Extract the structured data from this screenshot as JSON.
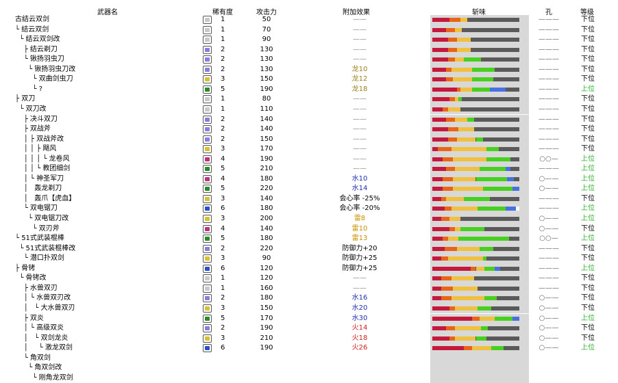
{
  "header": {
    "name": "武器名",
    "rarity": "稀有度",
    "attack": "攻击力",
    "effect": "附加效果",
    "sharpness": "斩味",
    "slots": "孔",
    "rank": "等级"
  },
  "colors": {
    "red": "#c4183c",
    "orange": "#e86418",
    "yellow": "#f0c040",
    "green": "#48d020",
    "blue": "#4870e0",
    "white": "#ffffff",
    "grey": "#5a5a5a"
  },
  "weapons": [
    {
      "name": "古结云双剑",
      "rarity": "1",
      "attack": "50",
      "effect": "——",
      "effect_type": "dash",
      "slots": "———",
      "rank": "下位",
      "rank_type": "low",
      "sharpness": [
        [
          "red",
          20
        ],
        [
          "orange",
          12
        ],
        [
          "yellow",
          8
        ],
        [
          "grey",
          60
        ]
      ]
    },
    {
      "name": "└ 结云双剑",
      "rarity": "1",
      "attack": "70",
      "effect": "——",
      "effect_type": "dash",
      "slots": "———",
      "rank": "下位",
      "rank_type": "low",
      "sharpness": [
        [
          "red",
          16
        ],
        [
          "orange",
          10
        ],
        [
          "yellow",
          8
        ],
        [
          "grey",
          66
        ]
      ]
    },
    {
      "name": "  └ 结云双剑改",
      "rarity": "1",
      "attack": "90",
      "effect": "——",
      "effect_type": "dash",
      "slots": "———",
      "rank": "下位",
      "rank_type": "low",
      "sharpness": [
        [
          "red",
          18
        ],
        [
          "orange",
          10
        ],
        [
          "yellow",
          16
        ],
        [
          "grey",
          56
        ]
      ]
    },
    {
      "name": "    ├ 结云剃刀",
      "rarity": "2",
      "attack": "130",
      "effect": "——",
      "effect_type": "dash",
      "slots": "———",
      "rank": "下位",
      "rank_type": "low",
      "sharpness": [
        [
          "red",
          18
        ],
        [
          "orange",
          10
        ],
        [
          "yellow",
          16
        ],
        [
          "grey",
          56
        ]
      ]
    },
    {
      "name": "    └ 锹扬羽虫刀",
      "rarity": "2",
      "attack": "130",
      "effect": "——",
      "effect_type": "dash",
      "slots": "———",
      "rank": "下位",
      "rank_type": "low",
      "sharpness": [
        [
          "red",
          18
        ],
        [
          "orange",
          8
        ],
        [
          "yellow",
          10
        ],
        [
          "green",
          20
        ],
        [
          "grey",
          44
        ]
      ]
    },
    {
      "name": "      └ 锹扬羽虫刀改",
      "rarity": "2",
      "attack": "130",
      "effect": "龙10",
      "effect_type": "dragon",
      "slots": "———",
      "rank": "下位",
      "rank_type": "low",
      "sharpness": [
        [
          "red",
          16
        ],
        [
          "orange",
          6
        ],
        [
          "yellow",
          24
        ],
        [
          "green",
          26
        ],
        [
          "grey",
          28
        ]
      ]
    },
    {
      "name": "        └ 双曲剑虫刀",
      "rarity": "3",
      "attack": "150",
      "effect": "龙12",
      "effect_type": "dragon",
      "slots": "———",
      "rank": "下位",
      "rank_type": "low",
      "sharpness": [
        [
          "red",
          16
        ],
        [
          "orange",
          8
        ],
        [
          "yellow",
          22
        ],
        [
          "green",
          24
        ],
        [
          "grey",
          30
        ]
      ]
    },
    {
      "name": "        └ ?",
      "rarity": "5",
      "attack": "190",
      "effect": "龙18",
      "effect_type": "dragon",
      "slots": "———",
      "rank": "上位",
      "rank_type": "high",
      "sharpness": [
        [
          "red",
          28
        ],
        [
          "orange",
          4
        ],
        [
          "yellow",
          14
        ],
        [
          "green",
          20
        ],
        [
          "blue",
          18
        ],
        [
          "grey",
          16
        ]
      ]
    },
    {
      "name": "├ 双刀",
      "rarity": "1",
      "attack": "80",
      "effect": "——",
      "effect_type": "dash",
      "slots": "———",
      "rank": "下位",
      "rank_type": "low",
      "sharpness": [
        [
          "red",
          20
        ],
        [
          "orange",
          6
        ],
        [
          "yellow",
          4
        ],
        [
          "green",
          4
        ],
        [
          "grey",
          66
        ]
      ]
    },
    {
      "name": "  └ 双刀改",
      "rarity": "1",
      "attack": "110",
      "effect": "——",
      "effect_type": "dash",
      "slots": "———",
      "rank": "下位",
      "rank_type": "low",
      "sharpness": [
        [
          "red",
          12
        ],
        [
          "orange",
          6
        ],
        [
          "yellow",
          14
        ],
        [
          "grey",
          68
        ]
      ]
    },
    {
      "name": "    ├ 决斗双刀",
      "rarity": "2",
      "attack": "140",
      "effect": "——",
      "effect_type": "dash",
      "slots": "———",
      "rank": "下位",
      "rank_type": "low",
      "sharpness": [
        [
          "red",
          16
        ],
        [
          "orange",
          10
        ],
        [
          "yellow",
          14
        ],
        [
          "green",
          8
        ],
        [
          "grey",
          52
        ]
      ]
    },
    {
      "name": "    ├ 双战斧",
      "rarity": "2",
      "attack": "140",
      "effect": "——",
      "effect_type": "dash",
      "slots": "———",
      "rank": "下位",
      "rank_type": "low",
      "sharpness": [
        [
          "red",
          18
        ],
        [
          "orange",
          12
        ],
        [
          "yellow",
          18
        ],
        [
          "grey",
          52
        ]
      ]
    },
    {
      "name": "    │ ├ 双战斧改",
      "rarity": "2",
      "attack": "150",
      "effect": "——",
      "effect_type": "dash",
      "slots": "———",
      "rank": "下位",
      "rank_type": "low",
      "sharpness": [
        [
          "red",
          18
        ],
        [
          "orange",
          10
        ],
        [
          "yellow",
          22
        ],
        [
          "green",
          8
        ],
        [
          "grey",
          42
        ]
      ]
    },
    {
      "name": "    │ │ ├ 飓风",
      "rarity": "3",
      "attack": "170",
      "effect": "——",
      "effect_type": "dash",
      "slots": "———",
      "rank": "下位",
      "rank_type": "low",
      "sharpness": [
        [
          "red",
          6
        ],
        [
          "orange",
          16
        ],
        [
          "yellow",
          40
        ],
        [
          "green",
          14
        ],
        [
          "grey",
          24
        ]
      ]
    },
    {
      "name": "    │ │ │ └ 龙卷风",
      "rarity": "4",
      "attack": "190",
      "effect": "——",
      "effect_type": "dash",
      "slots": "○○—",
      "rank": "上位",
      "rank_type": "high",
      "sharpness": [
        [
          "red",
          12
        ],
        [
          "orange",
          12
        ],
        [
          "yellow",
          38
        ],
        [
          "green",
          28
        ],
        [
          "grey",
          10
        ]
      ]
    },
    {
      "name": "    │ │ └ 教团细剑",
      "rarity": "5",
      "attack": "210",
      "effect": "——",
      "effect_type": "dash",
      "slots": "———",
      "rank": "上位",
      "rank_type": "high",
      "sharpness": [
        [
          "red",
          16
        ],
        [
          "orange",
          10
        ],
        [
          "yellow",
          28
        ],
        [
          "green",
          30
        ],
        [
          "blue",
          6
        ],
        [
          "grey",
          10
        ]
      ]
    },
    {
      "name": "    │ └ 神圣军刀",
      "rarity": "4",
      "attack": "180",
      "effect": "水10",
      "effect_type": "water",
      "slots": "○——",
      "rank": "上位",
      "rank_type": "high",
      "sharpness": [
        [
          "red",
          12
        ],
        [
          "orange",
          12
        ],
        [
          "yellow",
          26
        ],
        [
          "green",
          36
        ],
        [
          "blue",
          8
        ],
        [
          "grey",
          6
        ]
      ]
    },
    {
      "name": "    │   轰龙剃刀",
      "rarity": "5",
      "attack": "220",
      "effect": "水14",
      "effect_type": "water",
      "slots": "○——",
      "rank": "上位",
      "rank_type": "high",
      "sharpness": [
        [
          "red",
          12
        ],
        [
          "orange",
          12
        ],
        [
          "yellow",
          34
        ],
        [
          "green",
          34
        ],
        [
          "blue",
          8
        ]
      ]
    },
    {
      "name": "    │   轰爪【虎血】",
      "rarity": "3",
      "attack": "140",
      "effect": "会心率 -25%",
      "effect_type": "normal",
      "slots": "———",
      "rank": "下位",
      "rank_type": "low",
      "sharpness": [
        [
          "red",
          10
        ],
        [
          "orange",
          6
        ],
        [
          "yellow",
          20
        ],
        [
          "green",
          30
        ],
        [
          "grey",
          34
        ]
      ]
    },
    {
      "name": "    └ 双电锯刀",
      "rarity": "6",
      "attack": "180",
      "effect": "会心率 -20%",
      "effect_type": "normal",
      "slots": "———",
      "rank": "上位",
      "rank_type": "high",
      "sharpness": [
        [
          "red",
          14
        ],
        [
          "orange",
          8
        ],
        [
          "yellow",
          30
        ],
        [
          "green",
          32
        ],
        [
          "blue",
          12
        ],
        [
          "white",
          4
        ]
      ]
    },
    {
      "name": "      └ 双电锯刀改",
      "rarity": "3",
      "attack": "200",
      "effect": "雷8",
      "effect_type": "thunder",
      "slots": "○——",
      "rank": "上位",
      "rank_type": "high",
      "sharpness": [
        [
          "red",
          10
        ],
        [
          "orange",
          10
        ],
        [
          "yellow",
          12
        ],
        [
          "grey",
          68
        ]
      ]
    },
    {
      "name": "        └ 双刃斧",
      "rarity": "4",
      "attack": "140",
      "effect": "雷10",
      "effect_type": "thunder",
      "slots": "○——",
      "rank": "下位",
      "rank_type": "low",
      "sharpness": [
        [
          "red",
          20
        ],
        [
          "orange",
          6
        ],
        [
          "yellow",
          6
        ],
        [
          "green",
          28
        ],
        [
          "grey",
          40
        ]
      ]
    },
    {
      "name": "└ 51式武装棍棒",
      "rarity": "5",
      "attack": "180",
      "effect": "雷13",
      "effect_type": "thunder",
      "slots": "○○—",
      "rank": "上位",
      "rank_type": "high",
      "sharpness": [
        [
          "red",
          12
        ],
        [
          "orange",
          6
        ],
        [
          "yellow",
          12
        ],
        [
          "green",
          58
        ],
        [
          "grey",
          12
        ]
      ]
    },
    {
      "name": "  └ 51式武装棍棒改",
      "rarity": "2",
      "attack": "220",
      "effect": "防御力+20",
      "effect_type": "normal",
      "slots": "———",
      "rank": "下位",
      "rank_type": "low",
      "sharpness": [
        [
          "red",
          14
        ],
        [
          "orange",
          14
        ],
        [
          "yellow",
          26
        ],
        [
          "green",
          16
        ],
        [
          "grey",
          30
        ]
      ]
    },
    {
      "name": "    └ 潜口扑双剑",
      "rarity": "3",
      "attack": "90",
      "effect": "防御力+25",
      "effect_type": "normal",
      "slots": "———",
      "rank": "下位",
      "rank_type": "low",
      "sharpness": [
        [
          "red",
          10
        ],
        [
          "orange",
          8
        ],
        [
          "yellow",
          40
        ],
        [
          "green",
          4
        ],
        [
          "grey",
          38
        ]
      ]
    },
    {
      "name": "├ 骨铐",
      "rarity": "6",
      "attack": "120",
      "effect": "防御力+25",
      "effect_type": "normal",
      "slots": "———",
      "rank": "上位",
      "rank_type": "high",
      "sharpness": [
        [
          "red",
          44
        ],
        [
          "orange",
          6
        ],
        [
          "yellow",
          10
        ],
        [
          "green",
          12
        ],
        [
          "blue",
          6
        ],
        [
          "grey",
          22
        ]
      ]
    },
    {
      "name": "  └ 骨铐改",
      "rarity": "1",
      "attack": "120",
      "effect": "——",
      "effect_type": "dash",
      "slots": "———",
      "rank": "下位",
      "rank_type": "low",
      "sharpness": [
        [
          "red",
          10
        ],
        [
          "orange",
          12
        ],
        [
          "yellow",
          26
        ],
        [
          "grey",
          52
        ]
      ]
    },
    {
      "name": "    ├ 水兽双刃",
      "rarity": "1",
      "attack": "160",
      "effect": "——",
      "effect_type": "dash",
      "slots": "———",
      "rank": "下位",
      "rank_type": "low",
      "sharpness": [
        [
          "red",
          10
        ],
        [
          "orange",
          14
        ],
        [
          "yellow",
          28
        ],
        [
          "grey",
          48
        ]
      ]
    },
    {
      "name": "    │ └ 水兽双刃改",
      "rarity": "2",
      "attack": "180",
      "effect": "水16",
      "effect_type": "water",
      "slots": "○——",
      "rank": "下位",
      "rank_type": "low",
      "sharpness": [
        [
          "red",
          10
        ],
        [
          "orange",
          12
        ],
        [
          "yellow",
          38
        ],
        [
          "green",
          14
        ],
        [
          "grey",
          26
        ]
      ]
    },
    {
      "name": "    │   └ 大水兽双刃",
      "rarity": "3",
      "attack": "150",
      "effect": "水20",
      "effect_type": "water",
      "slots": "○——",
      "rank": "下位",
      "rank_type": "low",
      "sharpness": [
        [
          "red",
          20
        ],
        [
          "orange",
          6
        ],
        [
          "yellow",
          26
        ],
        [
          "green",
          16
        ],
        [
          "grey",
          32
        ]
      ]
    },
    {
      "name": "    ├ 双炎",
      "rarity": "5",
      "attack": "170",
      "effect": "水30",
      "effect_type": "water",
      "slots": "○——",
      "rank": "上位",
      "rank_type": "high",
      "sharpness": [
        [
          "red",
          46
        ],
        [
          "orange",
          8
        ],
        [
          "yellow",
          18
        ],
        [
          "green",
          20
        ],
        [
          "blue",
          8
        ]
      ]
    },
    {
      "name": "    │ └ 高级双炎",
      "rarity": "2",
      "attack": "190",
      "effect": "火14",
      "effect_type": "fire",
      "slots": "○——",
      "rank": "下位",
      "rank_type": "low",
      "sharpness": [
        [
          "red",
          16
        ],
        [
          "orange",
          10
        ],
        [
          "yellow",
          30
        ],
        [
          "green",
          8
        ],
        [
          "grey",
          36
        ]
      ]
    },
    {
      "name": "    │   └ 双剑龙炎",
      "rarity": "3",
      "attack": "210",
      "effect": "火18",
      "effect_type": "fire",
      "slots": "○——",
      "rank": "下位",
      "rank_type": "low",
      "sharpness": [
        [
          "red",
          20
        ],
        [
          "orange",
          6
        ],
        [
          "yellow",
          24
        ],
        [
          "green",
          12
        ],
        [
          "grey",
          38
        ]
      ]
    },
    {
      "name": "    │     └ 激龙双剑",
      "rarity": "6",
      "attack": "190",
      "effect": "火26",
      "effect_type": "fire",
      "slots": "○——",
      "rank": "上位",
      "rank_type": "high",
      "sharpness": [
        [
          "red",
          36
        ],
        [
          "orange",
          10
        ],
        [
          "yellow",
          22
        ],
        [
          "green",
          14
        ],
        [
          "grey",
          18
        ]
      ]
    },
    {
      "name": "    └ 角双剑",
      "rarity": "",
      "attack": "",
      "effect": "",
      "effect_type": "dash",
      "slots": "",
      "rank": "",
      "rank_type": "low",
      "sharpness": []
    },
    {
      "name": "      └ 角双剑改",
      "rarity": "",
      "attack": "",
      "effect": "",
      "effect_type": "dash",
      "slots": "",
      "rank": "",
      "rank_type": "low",
      "sharpness": []
    },
    {
      "name": "        └ 刚角龙双剑",
      "rarity": "",
      "attack": "",
      "effect": "",
      "effect_type": "dash",
      "slots": "",
      "rank": "",
      "rank_type": "low",
      "sharpness": []
    }
  ]
}
